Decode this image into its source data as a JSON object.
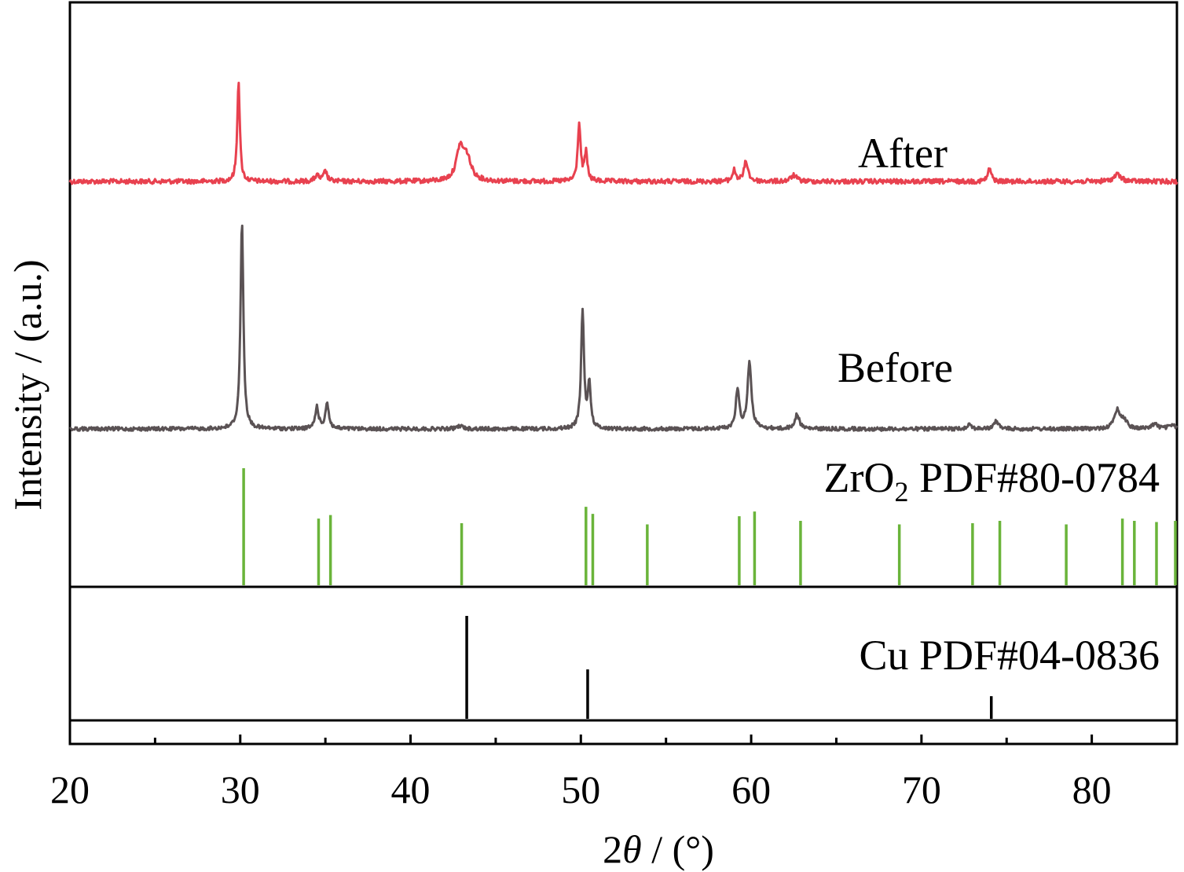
{
  "chart_data": {
    "type": "line",
    "xlabel_parts": [
      "2",
      "θ",
      " / (°)"
    ],
    "ylabel": "Intensity / (a.u.)",
    "xlim": [
      20,
      85
    ],
    "x_ticks": [
      20,
      30,
      40,
      50,
      60,
      70,
      80
    ],
    "x_tick_labels": [
      "20",
      "30",
      "40",
      "50",
      "60",
      "70",
      "80"
    ],
    "grid": false,
    "series": [
      {
        "label": "After",
        "color": "#e8414f",
        "baseline": 0,
        "peaks": [
          {
            "x": 29.9,
            "h": 100,
            "w": 0.09
          },
          {
            "x": 34.5,
            "h": 6,
            "w": 0.15
          },
          {
            "x": 35.0,
            "h": 10,
            "w": 0.12
          },
          {
            "x": 42.9,
            "h": 30,
            "w": 0.25
          },
          {
            "x": 43.3,
            "h": 22,
            "w": 0.3
          },
          {
            "x": 49.9,
            "h": 57,
            "w": 0.1
          },
          {
            "x": 50.3,
            "h": 28,
            "w": 0.1
          },
          {
            "x": 59.0,
            "h": 11,
            "w": 0.12
          },
          {
            "x": 59.7,
            "h": 20,
            "w": 0.14
          },
          {
            "x": 62.5,
            "h": 6,
            "w": 0.2
          },
          {
            "x": 74.0,
            "h": 13,
            "w": 0.12
          },
          {
            "x": 81.5,
            "h": 7,
            "w": 0.25
          }
        ]
      },
      {
        "label": "Before",
        "color": "#5a5254",
        "baseline": 0,
        "peaks": [
          {
            "x": 30.1,
            "h": 210,
            "w": 0.1
          },
          {
            "x": 34.5,
            "h": 22,
            "w": 0.12
          },
          {
            "x": 35.1,
            "h": 26,
            "w": 0.12
          },
          {
            "x": 42.9,
            "h": 3,
            "w": 0.2
          },
          {
            "x": 50.1,
            "h": 120,
            "w": 0.1
          },
          {
            "x": 50.5,
            "h": 44,
            "w": 0.1
          },
          {
            "x": 59.2,
            "h": 40,
            "w": 0.12
          },
          {
            "x": 59.9,
            "h": 66,
            "w": 0.14
          },
          {
            "x": 62.7,
            "h": 15,
            "w": 0.15
          },
          {
            "x": 72.8,
            "h": 5,
            "w": 0.15
          },
          {
            "x": 74.4,
            "h": 8,
            "w": 0.15
          },
          {
            "x": 81.5,
            "h": 19,
            "w": 0.2
          },
          {
            "x": 81.9,
            "h": 8,
            "w": 0.2
          },
          {
            "x": 83.7,
            "h": 5,
            "w": 0.2
          },
          {
            "x": 84.7,
            "h": 4,
            "w": 0.2
          }
        ]
      }
    ],
    "reference_patterns": [
      {
        "label_parts": [
          "ZrO",
          "2",
          " PDF#80-0784"
        ],
        "color": "#6ab43a",
        "lines": [
          {
            "x": 30.2,
            "h": 100
          },
          {
            "x": 34.6,
            "h": 57
          },
          {
            "x": 35.3,
            "h": 60
          },
          {
            "x": 43.0,
            "h": 53
          },
          {
            "x": 50.3,
            "h": 67
          },
          {
            "x": 50.7,
            "h": 61
          },
          {
            "x": 53.9,
            "h": 52
          },
          {
            "x": 59.3,
            "h": 59
          },
          {
            "x": 60.2,
            "h": 63
          },
          {
            "x": 62.9,
            "h": 55
          },
          {
            "x": 68.7,
            "h": 52
          },
          {
            "x": 73.0,
            "h": 53
          },
          {
            "x": 74.6,
            "h": 55
          },
          {
            "x": 78.5,
            "h": 52
          },
          {
            "x": 81.8,
            "h": 57
          },
          {
            "x": 82.5,
            "h": 55
          },
          {
            "x": 83.8,
            "h": 54
          },
          {
            "x": 85.0,
            "h": 55
          }
        ]
      },
      {
        "label": "Cu PDF#04-0836",
        "color": "#000000",
        "lines": [
          {
            "x": 43.3,
            "h": 100
          },
          {
            "x": 50.4,
            "h": 48
          },
          {
            "x": 74.1,
            "h": 22
          }
        ]
      }
    ]
  }
}
